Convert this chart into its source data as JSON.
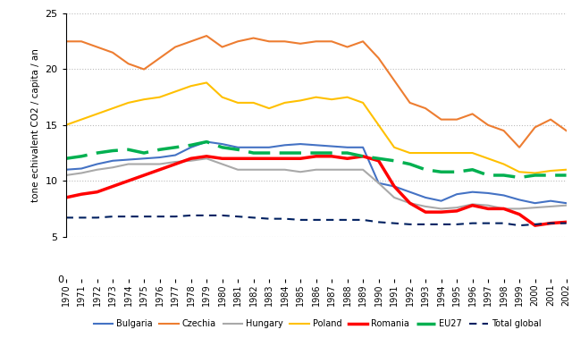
{
  "years": [
    1970,
    1971,
    1972,
    1973,
    1974,
    1975,
    1976,
    1977,
    1978,
    1979,
    1980,
    1981,
    1982,
    1983,
    1984,
    1985,
    1986,
    1987,
    1988,
    1989,
    1990,
    1991,
    1992,
    1993,
    1994,
    1995,
    1996,
    1997,
    1998,
    1999,
    2000,
    2001,
    2002
  ],
  "Bulgaria": [
    11.0,
    11.1,
    11.5,
    11.8,
    11.9,
    12.0,
    12.1,
    12.3,
    13.0,
    13.5,
    13.3,
    13.0,
    13.0,
    13.0,
    13.2,
    13.3,
    13.2,
    13.1,
    13.0,
    13.0,
    9.8,
    9.5,
    9.0,
    8.5,
    8.2,
    8.8,
    9.0,
    8.9,
    8.7,
    8.3,
    8.0,
    8.2,
    8.0
  ],
  "Czechia": [
    22.5,
    22.5,
    22.0,
    21.5,
    20.5,
    20.0,
    21.0,
    22.0,
    22.5,
    23.0,
    22.0,
    22.5,
    22.8,
    22.5,
    22.5,
    22.3,
    22.5,
    22.5,
    22.0,
    22.5,
    21.0,
    19.0,
    17.0,
    16.5,
    15.5,
    15.5,
    16.0,
    15.0,
    14.5,
    13.0,
    14.8,
    15.5,
    14.5
  ],
  "Hungary": [
    10.5,
    10.7,
    11.0,
    11.2,
    11.5,
    11.5,
    11.5,
    11.7,
    11.8,
    12.0,
    11.5,
    11.0,
    11.0,
    11.0,
    11.0,
    10.8,
    11.0,
    11.0,
    11.0,
    11.0,
    9.8,
    8.5,
    8.0,
    7.7,
    7.5,
    7.6,
    7.9,
    7.8,
    7.5,
    7.5,
    7.6,
    7.7,
    7.8
  ],
  "Poland": [
    15.0,
    15.5,
    16.0,
    16.5,
    17.0,
    17.3,
    17.5,
    18.0,
    18.5,
    18.8,
    17.5,
    17.0,
    17.0,
    16.5,
    17.0,
    17.2,
    17.5,
    17.3,
    17.5,
    17.0,
    15.0,
    13.0,
    12.5,
    12.5,
    12.5,
    12.5,
    12.5,
    12.0,
    11.5,
    10.8,
    10.7,
    10.9,
    11.0
  ],
  "Romania": [
    8.5,
    8.8,
    9.0,
    9.5,
    10.0,
    10.5,
    11.0,
    11.5,
    12.0,
    12.2,
    12.0,
    12.0,
    12.0,
    12.0,
    12.0,
    12.0,
    12.2,
    12.2,
    12.0,
    12.2,
    11.8,
    9.5,
    8.0,
    7.2,
    7.2,
    7.3,
    7.8,
    7.5,
    7.5,
    7.0,
    6.0,
    6.2,
    6.3
  ],
  "EU27": [
    12.0,
    12.2,
    12.5,
    12.7,
    12.8,
    12.5,
    12.8,
    13.0,
    13.2,
    13.5,
    13.0,
    12.8,
    12.5,
    12.5,
    12.5,
    12.5,
    12.5,
    12.5,
    12.5,
    12.2,
    12.0,
    11.8,
    11.5,
    11.0,
    10.8,
    10.8,
    11.0,
    10.5,
    10.5,
    10.3,
    10.5,
    10.5,
    10.5
  ],
  "Total_global": [
    6.7,
    6.7,
    6.7,
    6.8,
    6.8,
    6.8,
    6.8,
    6.8,
    6.9,
    6.9,
    6.9,
    6.8,
    6.7,
    6.6,
    6.6,
    6.5,
    6.5,
    6.5,
    6.5,
    6.5,
    6.3,
    6.2,
    6.1,
    6.1,
    6.1,
    6.1,
    6.2,
    6.2,
    6.2,
    6.0,
    6.1,
    6.2,
    6.2
  ],
  "ylabel": "tone echivalent CO2 / capita / an",
  "ylim_main": [
    5,
    25
  ],
  "yticks_main": [
    5,
    10,
    15,
    20,
    25
  ],
  "legend_labels": [
    "Bulgaria",
    "Czechia",
    "Hungary",
    "Poland",
    "Romania",
    "EU27",
    "Total global"
  ],
  "colors": {
    "Bulgaria": "#4472C4",
    "Czechia": "#ED7D31",
    "Hungary": "#A9A9A9",
    "Poland": "#FFC000",
    "Romania": "#FF0000",
    "EU27": "#00B050",
    "Total_global": "#002060"
  },
  "line_widths": {
    "Bulgaria": 1.5,
    "Czechia": 1.5,
    "Hungary": 1.5,
    "Poland": 1.5,
    "Romania": 2.5,
    "EU27": 2.5,
    "Total_global": 1.5
  }
}
